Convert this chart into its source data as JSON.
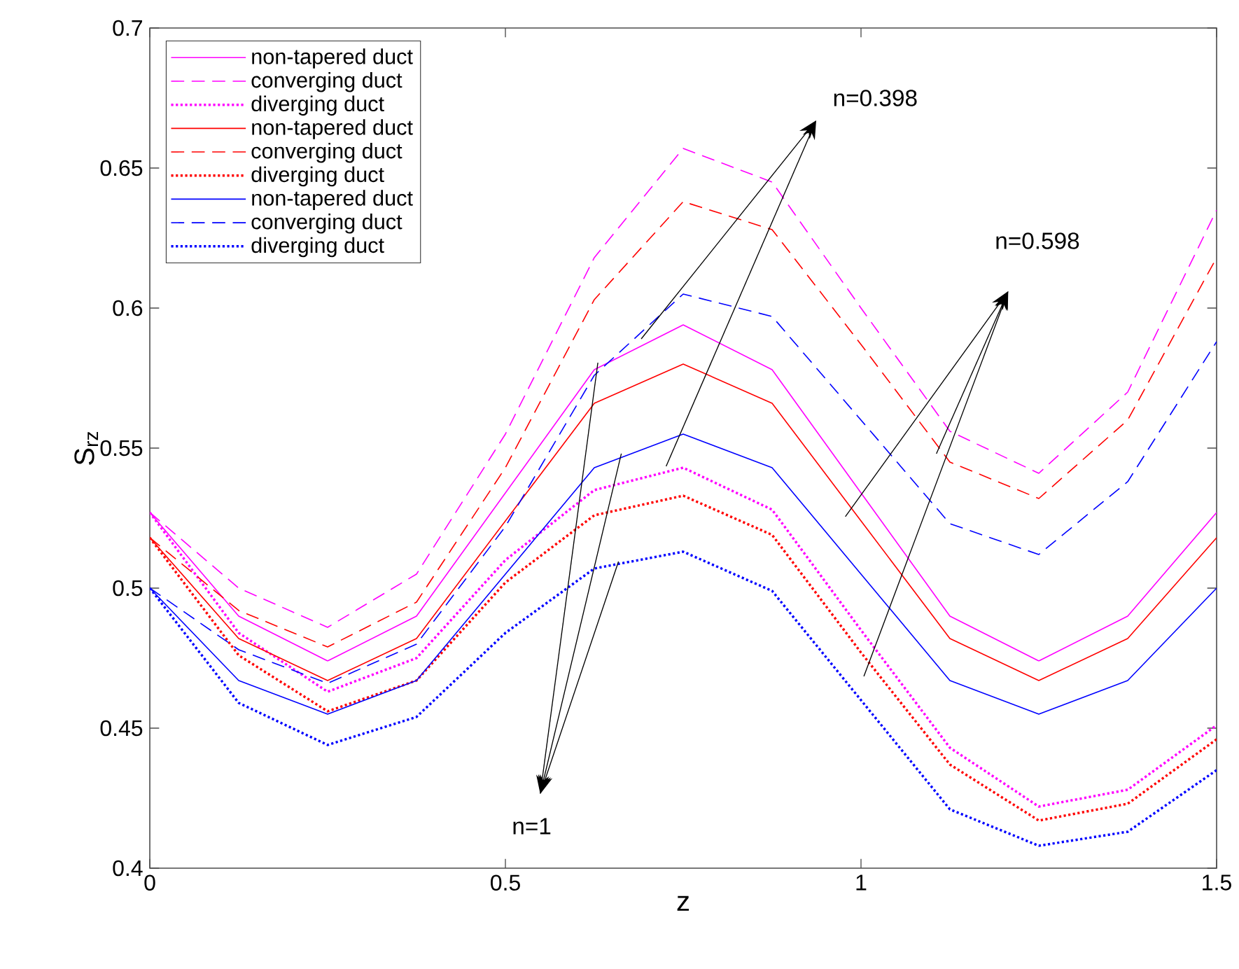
{
  "chart_data": {
    "type": "line",
    "xlabel": "z",
    "ylabel": "S$_{rz}$",
    "x": [
      0,
      0.125,
      0.25,
      0.375,
      0.5,
      0.625,
      0.75,
      0.875,
      1,
      1.125,
      1.25,
      1.375,
      1.5
    ],
    "xlim": [
      0,
      1.5
    ],
    "ylim": [
      0.4,
      0.7
    ],
    "xticks": [
      0,
      0.5,
      1,
      1.5
    ],
    "yticks": [
      0.4,
      0.45,
      0.5,
      0.55,
      0.6,
      0.65,
      0.7
    ],
    "legend": "top left",
    "marker": "none",
    "series": [
      {
        "name": "non-tapered duct",
        "color": "#ff00ff",
        "line_style": "solid",
        "values": [
          0.527,
          0.49,
          0.474,
          0.49,
          0.534,
          0.578,
          0.594,
          0.578,
          0.534,
          0.49,
          0.474,
          0.49,
          0.527
        ]
      },
      {
        "name": "converging duct",
        "color": "#ff00ff",
        "line_style": "dashed",
        "values": [
          0.527,
          0.5,
          0.486,
          0.505,
          0.555,
          0.618,
          0.657,
          0.645,
          0.6,
          0.556,
          0.541,
          0.57,
          0.635
        ]
      },
      {
        "name": "diverging duct",
        "color": "#ff00ff",
        "line_style": "dotted",
        "values": [
          0.527,
          0.484,
          0.463,
          0.475,
          0.51,
          0.535,
          0.543,
          0.528,
          0.485,
          0.443,
          0.422,
          0.428,
          0.451
        ]
      },
      {
        "name": "non-tapered duct",
        "color": "#ff0000",
        "line_style": "solid",
        "values": [
          0.518,
          0.482,
          0.467,
          0.482,
          0.524,
          0.566,
          0.58,
          0.566,
          0.524,
          0.482,
          0.467,
          0.482,
          0.518
        ]
      },
      {
        "name": "converging duct",
        "color": "#ff0000",
        "line_style": "dashed",
        "values": [
          0.518,
          0.492,
          0.479,
          0.495,
          0.543,
          0.603,
          0.638,
          0.628,
          0.587,
          0.545,
          0.532,
          0.56,
          0.618
        ]
      },
      {
        "name": "diverging duct",
        "color": "#ff0000",
        "line_style": "dotted",
        "values": [
          0.518,
          0.476,
          0.456,
          0.467,
          0.502,
          0.526,
          0.533,
          0.519,
          0.477,
          0.437,
          0.417,
          0.423,
          0.446
        ]
      },
      {
        "name": "non-tapered duct",
        "color": "#0000ff",
        "line_style": "solid",
        "values": [
          0.5,
          0.467,
          0.455,
          0.467,
          0.505,
          0.543,
          0.555,
          0.543,
          0.505,
          0.467,
          0.455,
          0.467,
          0.5
        ]
      },
      {
        "name": "converging duct",
        "color": "#0000ff",
        "line_style": "dashed",
        "values": [
          0.5,
          0.478,
          0.466,
          0.48,
          0.522,
          0.576,
          0.605,
          0.597,
          0.56,
          0.523,
          0.512,
          0.538,
          0.588
        ]
      },
      {
        "name": "diverging duct",
        "color": "#0000ff",
        "line_style": "dotted",
        "values": [
          0.5,
          0.459,
          0.444,
          0.454,
          0.484,
          0.507,
          0.513,
          0.499,
          0.46,
          0.421,
          0.408,
          0.413,
          0.435
        ]
      }
    ],
    "annotations": [
      "n=0.398",
      "n=0.598",
      "n=1"
    ]
  }
}
